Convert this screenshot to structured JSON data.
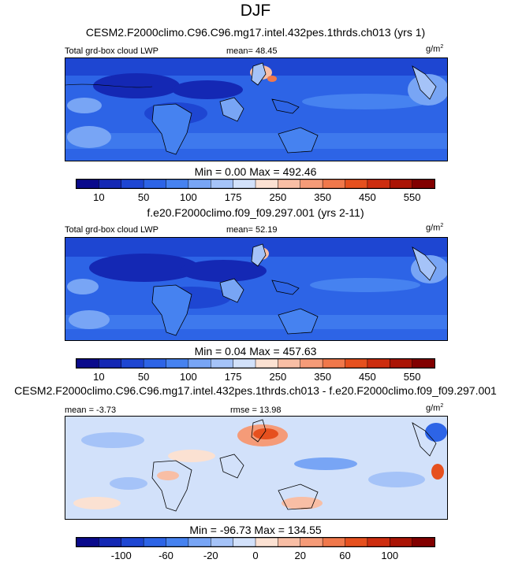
{
  "title": "DJF",
  "panel1": {
    "heading": "CESM2.F2000climo.C96.C96.mg17.intel.432pes.1thrds.ch013 (yrs 1)",
    "left_label": "Total grd-box cloud LWP",
    "center_label": "mean=  48.45",
    "unit_base": "g/m",
    "unit_exp": "2",
    "minmax": "Min =   0.00 Max = 492.46"
  },
  "panel2": {
    "heading": "f.e20.F2000climo.f09_f09.297.001 (yrs 2-11)",
    "left_label": "Total grd-box cloud LWP",
    "center_label": "mean=  52.19",
    "unit_base": "g/m",
    "unit_exp": "2",
    "minmax": "Min =   0.04 Max = 457.63"
  },
  "panel3": {
    "heading": "CESM2.F2000climo.C96.C96.mg17.intel.432pes.1thrds.ch013 - f.e20.F2000climo.f09_f09.297.001",
    "left_label": "mean =  -3.73",
    "center_label": "rmse =  13.98",
    "unit_base": "g/m",
    "unit_exp": "2",
    "minmax": "Min = -96.73 Max = 134.55"
  },
  "colorbar_abs": {
    "colors": [
      "#0a0a8c",
      "#1428b4",
      "#1e46d2",
      "#2d64e6",
      "#4682f0",
      "#78a5f5",
      "#a5c3f8",
      "#d2e1fa",
      "#fbe1d2",
      "#f8bea5",
      "#f59b78",
      "#f0784b",
      "#e6501e",
      "#cd2d0f",
      "#aa1405",
      "#820000"
    ],
    "tick_labels": [
      "10",
      "50",
      "100",
      "175",
      "250",
      "350",
      "450",
      "550"
    ]
  },
  "colorbar_diff": {
    "colors": [
      "#0a0a8c",
      "#1428b4",
      "#1e46d2",
      "#2d64e6",
      "#4682f0",
      "#78a5f5",
      "#a5c3f8",
      "#d2e1fa",
      "#fbe1d2",
      "#f8bea5",
      "#f59b78",
      "#f0784b",
      "#e6501e",
      "#cd2d0f",
      "#aa1405",
      "#820000"
    ],
    "tick_labels": [
      "-100",
      "-60",
      "-20",
      "0",
      "20",
      "60",
      "100"
    ]
  }
}
